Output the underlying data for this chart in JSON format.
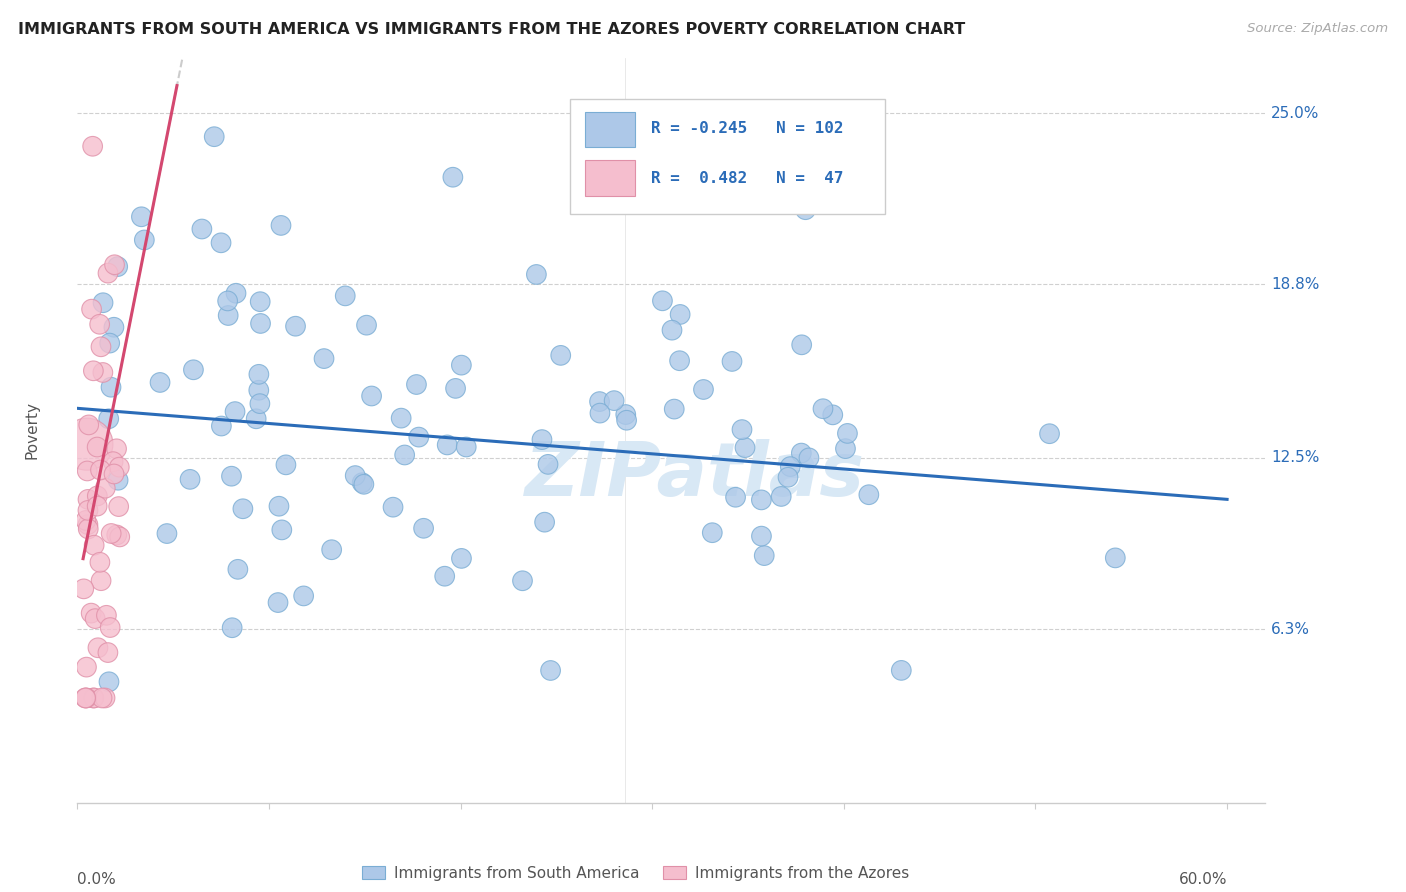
{
  "title": "IMMIGRANTS FROM SOUTH AMERICA VS IMMIGRANTS FROM THE AZORES POVERTY CORRELATION CHART",
  "source": "Source: ZipAtlas.com",
  "ylabel": "Poverty",
  "xlim": [
    0.0,
    0.62
  ],
  "ylim": [
    0.0,
    0.27
  ],
  "yticks": [
    0.063,
    0.125,
    0.188,
    0.25
  ],
  "ytick_labels": [
    "6.3%",
    "12.5%",
    "18.8%",
    "25.0%"
  ],
  "xtick_labels_left": "0.0%",
  "xtick_labels_right": "60.0%",
  "blue_color": "#adc8e8",
  "blue_edge_color": "#7aadd4",
  "pink_color": "#f5bece",
  "pink_edge_color": "#e090a8",
  "blue_line_color": "#2b6cb8",
  "pink_line_color": "#d44870",
  "watermark": "ZIPatlas",
  "watermark_color": "#d8e8f5",
  "background_color": "#ffffff",
  "grid_color": "#d0d0d0",
  "title_color": "#222222",
  "source_color": "#aaaaaa",
  "ylabel_color": "#555555",
  "tick_label_color": "#555555",
  "right_label_color": "#2b6cb8",
  "legend_text_color": "#2b6cb8",
  "legend_border_color": "#cccccc",
  "bottom_legend_color": "#555555"
}
